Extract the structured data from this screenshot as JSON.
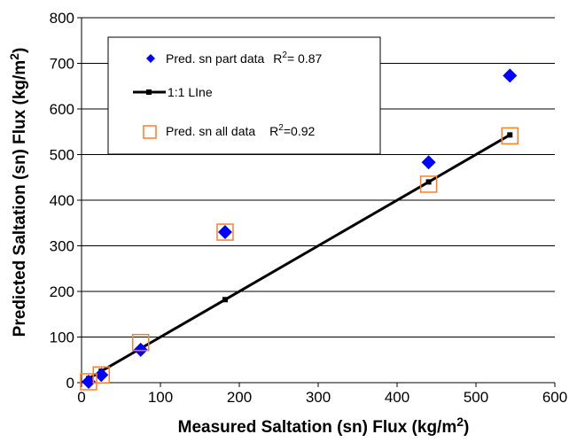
{
  "chart_data": {
    "type": "scatter",
    "xlabel": "Measured Saltation (sn) Flux (kg/m",
    "xlabel_sup": "2",
    "xlabel_end": ")",
    "ylabel": "Predicted Saltation (sn) Flux (kg/m",
    "ylabel_sup": "2",
    "ylabel_end": ")",
    "xlim": [
      0,
      600
    ],
    "ylim": [
      0,
      800
    ],
    "xticks": [
      0,
      100,
      200,
      300,
      400,
      500,
      600
    ],
    "yticks": [
      0,
      100,
      200,
      300,
      400,
      500,
      600,
      700,
      800
    ],
    "grid": "horizontal",
    "legend_position": "top-left",
    "series": [
      {
        "name": "Pred. sn part data",
        "r2_label": "R",
        "r2_sup": "2",
        "r2_value": "= 0.87",
        "marker": "diamond",
        "color": "#0000ff",
        "x": [
          9,
          25,
          75,
          182,
          440,
          543
        ],
        "y": [
          2,
          17,
          72,
          330,
          483,
          673
        ]
      },
      {
        "name": "1:1 LIne",
        "marker": "square-line",
        "color": "#000000",
        "x": [
          9,
          25,
          75,
          182,
          440,
          543
        ],
        "y": [
          9,
          25,
          75,
          182,
          440,
          543
        ]
      },
      {
        "name": "Pred. sn all data",
        "r2_label": "R",
        "r2_sup": "2",
        "r2_value": "=0.92",
        "marker": "open-square",
        "color": "#ff7f27",
        "x": [
          9,
          25,
          75,
          182,
          440,
          543
        ],
        "y": [
          2,
          17,
          88,
          330,
          435,
          541
        ]
      }
    ]
  }
}
